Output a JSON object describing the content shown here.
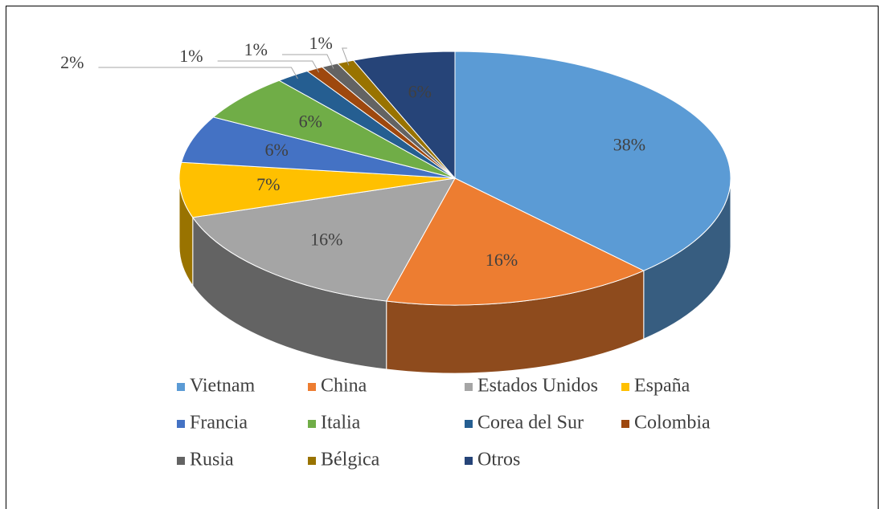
{
  "chart_data": {
    "type": "pie",
    "categories": [
      "Vietnam",
      "China",
      "Estados Unidos",
      "España",
      "Francia",
      "Italia",
      "Corea del Sur",
      "Colombia",
      "Rusia",
      "Bélgica",
      "Otros"
    ],
    "values": [
      38,
      16,
      16,
      7,
      6,
      6,
      2,
      1,
      1,
      1,
      6
    ],
    "value_labels": [
      "38%",
      "16%",
      "16%",
      "7%",
      "6%",
      "6%",
      "2%",
      "1%",
      "1%",
      "1%",
      "6%"
    ],
    "colors": [
      "#5b9bd5",
      "#ed7d31",
      "#a5a5a5",
      "#ffc000",
      "#4472c4",
      "#70ad47",
      "#255e91",
      "#9e480e",
      "#636363",
      "#997300",
      "#264478"
    ],
    "legend": "bottom"
  }
}
